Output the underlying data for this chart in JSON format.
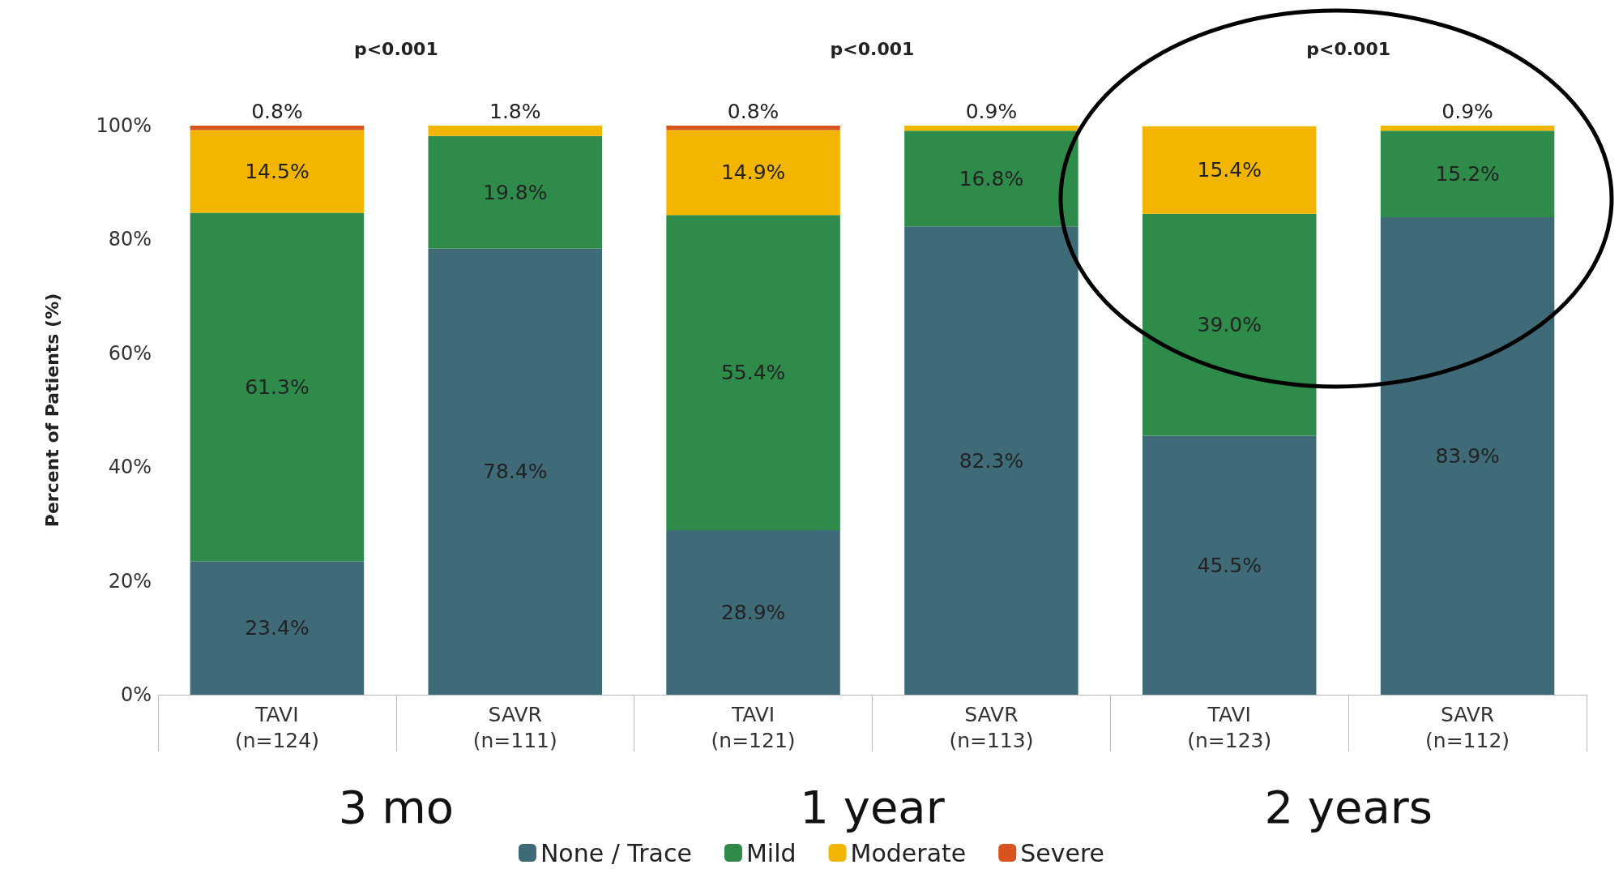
{
  "chart_data": {
    "type": "bar",
    "stacked": true,
    "ylabel": "Percent of Patients (%)",
    "categories": [
      "TAVI\n(n=124)",
      "SAVR\n(n=111)",
      "TAVI\n(n=121)",
      "SAVR\n(n=113)",
      "TAVI\n(n=123)",
      "SAVR\n(n=112)"
    ],
    "series": [
      {
        "name": "None / Trace",
        "color": "#3f6b78",
        "values": [
          23.4,
          78.4,
          28.9,
          82.3,
          45.5,
          83.9
        ],
        "value_labels": [
          "23.4%",
          "78.4%",
          "28.9%",
          "82.3%",
          "45.5%",
          "83.9%"
        ]
      },
      {
        "name": "Mild",
        "color": "#2e8b4a",
        "values": [
          61.3,
          19.8,
          55.4,
          16.8,
          39.0,
          15.2
        ],
        "value_labels": [
          "61.3%",
          "19.8%",
          "55.4%",
          "16.8%",
          "39.0%",
          "15.2%"
        ]
      },
      {
        "name": "Moderate",
        "color": "#f2b600",
        "values": [
          14.5,
          1.8,
          14.9,
          0.9,
          15.4,
          0.9
        ],
        "value_labels": [
          "14.5%",
          "1.8%",
          "14.9%",
          "0.9%",
          "15.4%",
          "0.9%"
        ]
      },
      {
        "name": "Severe",
        "color": "#d9531e",
        "values": [
          0.8,
          null,
          0.8,
          null,
          null,
          null
        ],
        "value_labels": [
          "0.8%",
          null,
          "0.8%",
          null,
          null,
          null
        ]
      }
    ],
    "ylim": [
      0,
      100
    ],
    "yticks": [
      {
        "value": 0,
        "label": "0%"
      },
      {
        "value": 20,
        "label": "20%"
      },
      {
        "value": 40,
        "label": "40%"
      },
      {
        "value": 60,
        "label": "60%"
      },
      {
        "value": 80,
        "label": "80%"
      },
      {
        "value": 100,
        "label": "100%"
      }
    ],
    "grid": false,
    "legend": "bottom",
    "annotations": [
      "p<0.001",
      "p<0.001",
      "p<0.001",
      "3 mo",
      "1 year",
      "2 years"
    ]
  }
}
